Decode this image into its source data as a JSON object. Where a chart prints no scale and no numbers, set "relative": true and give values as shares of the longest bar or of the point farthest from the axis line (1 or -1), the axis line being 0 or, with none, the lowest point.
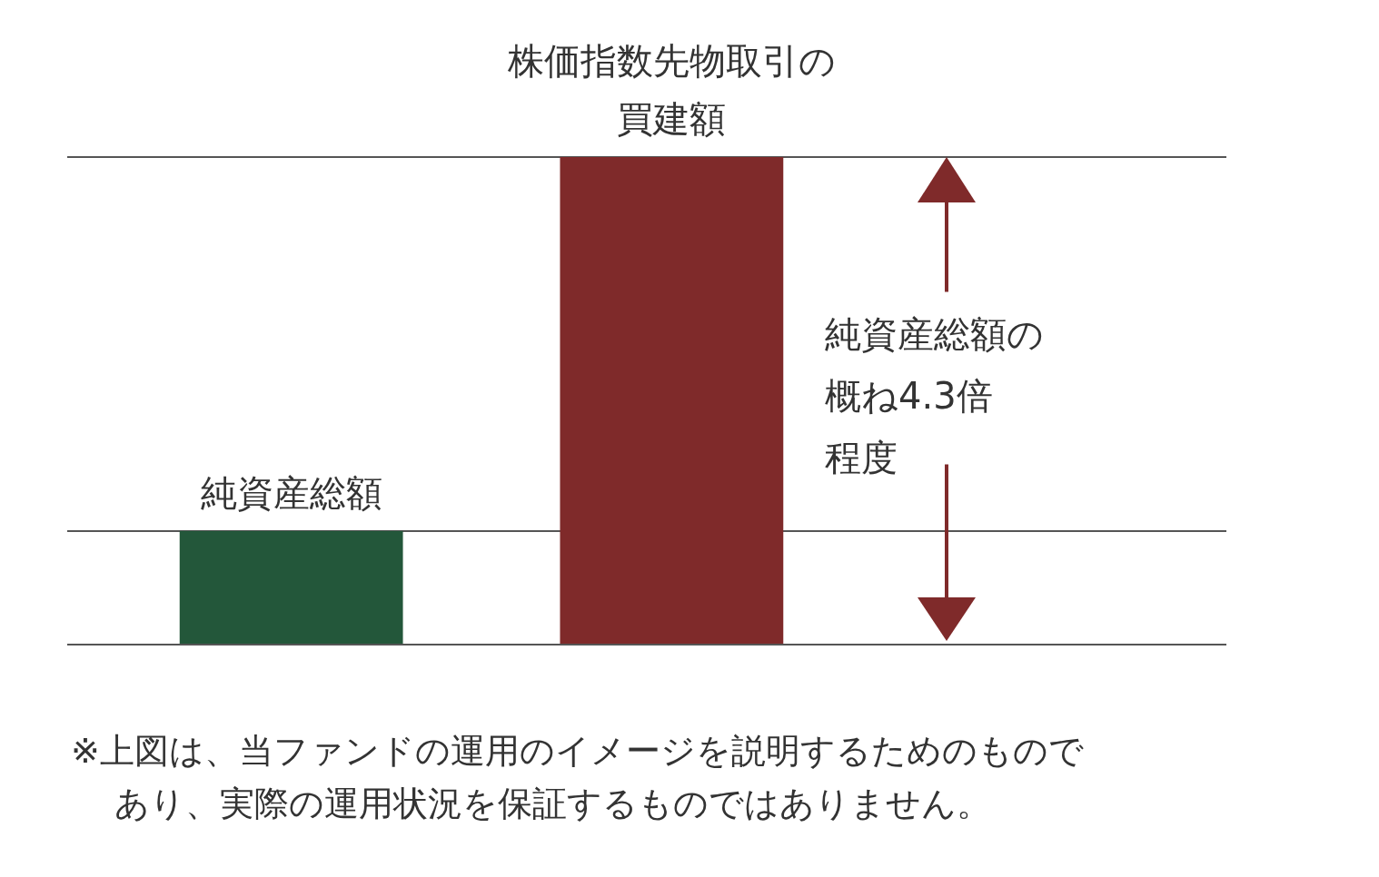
{
  "chart_data": {
    "type": "bar",
    "relative": true,
    "categories": [
      "純資産総額",
      "株価指数先物取引の買建額"
    ],
    "values": [
      0.233,
      1
    ],
    "colors": [
      "#23573a",
      "#7f2a2a"
    ],
    "ref_lines": [
      {
        "axis": "y",
        "value": 0.233,
        "color": "#555555"
      },
      {
        "axis": "y",
        "value": 1,
        "color": "#555555"
      }
    ],
    "annotations": [
      "純資産総額の概ね4.3倍程度",
      "※上図は、当ファンドの運用のイメージを説明するためのものであり、実際の運用状況を保証するものではありません。"
    ]
  }
}
